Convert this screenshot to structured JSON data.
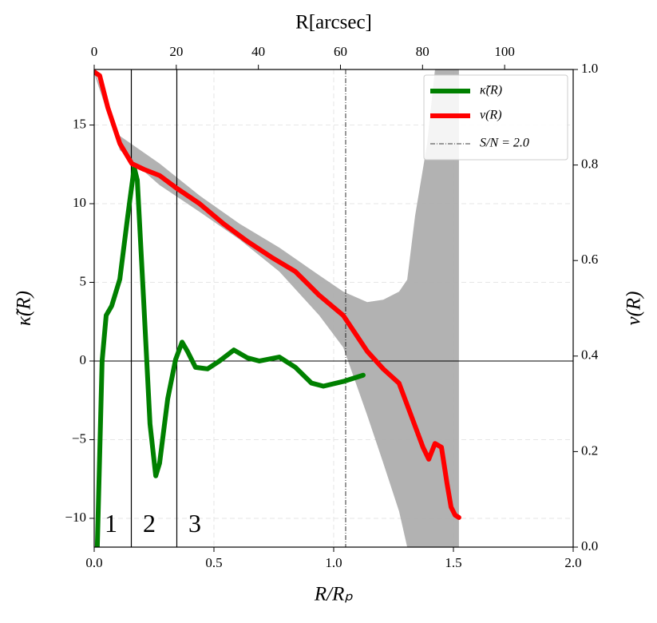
{
  "chart_data": {
    "type": "line",
    "xlabel": "R/Rₚ",
    "x2label": "R[arcsec]",
    "ylabel": "κ̃(R)",
    "y2label": "ν(R)",
    "xlim": [
      0,
      2.0
    ],
    "xticks": [
      {
        "value": 0,
        "label": "0.0"
      },
      0.5,
      {
        "value": 1,
        "label": "1.0"
      },
      1.5,
      {
        "value": 2,
        "label": "2.0"
      }
    ],
    "x2lim": [
      0,
      116.7
    ],
    "x2ticks": [
      0,
      20,
      40,
      60,
      80,
      100
    ],
    "ylim": [
      -11.83,
      18.53
    ],
    "yticks": [
      {
        "value": -10,
        "label": "−10"
      },
      {
        "value": -5,
        "label": "−5"
      },
      0,
      5,
      10,
      15
    ],
    "y2lim": [
      0,
      1.0
    ],
    "y2ticks": [
      {
        "value": 0,
        "label": "0.0"
      },
      0.2,
      0.4,
      0.6,
      0.8,
      {
        "value": 1,
        "label": "1.0"
      }
    ],
    "grid": true,
    "legend": "upper right",
    "hline": 0,
    "vlines": [
      0.155,
      0.345
    ],
    "threshold": {
      "x": 1.05,
      "label": "S/N = 2.0"
    },
    "annotations": [
      {
        "text": "1",
        "x": 0.07,
        "y": -10.5
      },
      {
        "text": "2",
        "x": 0.23,
        "y": -10.5
      },
      {
        "text": "3",
        "x": 0.42,
        "y": -10.5
      }
    ],
    "error_band": {
      "color": "#aaaaaa",
      "axis": "y2",
      "x": [
        0,
        0.107,
        0.273,
        0.44,
        0.607,
        0.773,
        0.94,
        1.04,
        1.14,
        1.207,
        1.273,
        1.307,
        1.34,
        1.39,
        1.423,
        1.523
      ],
      "upper": [
        0.998,
        0.861,
        0.803,
        0.736,
        0.677,
        0.627,
        0.569,
        0.535,
        0.513,
        0.518,
        0.535,
        0.56,
        0.694,
        0.844,
        1.0,
        1.0
      ],
      "lower": [
        0.992,
        0.831,
        0.758,
        0.702,
        0.644,
        0.577,
        0.485,
        0.418,
        0.276,
        0.176,
        0.075,
        0,
        0,
        0,
        0,
        0
      ]
    },
    "series": [
      {
        "name": "κ̃(R)",
        "color": "#008000",
        "x": [
          0.013,
          0.033,
          0.05,
          0.073,
          0.107,
          0.14,
          0.167,
          0.18,
          0.207,
          0.233,
          0.257,
          0.273,
          0.307,
          0.34,
          0.367,
          0.39,
          0.423,
          0.473,
          0.523,
          0.583,
          0.64,
          0.69,
          0.773,
          0.84,
          0.907,
          0.957,
          1.04,
          1.123
        ],
        "values": [
          -11.8,
          0,
          2.9,
          3.5,
          5.2,
          9.2,
          12.3,
          11.5,
          3.7,
          -4.0,
          -7.3,
          -6.5,
          -2.4,
          0.1,
          1.2,
          0.6,
          -0.4,
          -0.5,
          0,
          0.7,
          0.2,
          0,
          0.25,
          -0.4,
          -1.4,
          -1.6,
          -1.3,
          -0.9
        ]
      },
      {
        "name": "ν(R)",
        "color": "#ff0000",
        "axis": "y2",
        "x": [
          0,
          0.023,
          0.057,
          0.107,
          0.157,
          0.207,
          0.273,
          0.34,
          0.44,
          0.54,
          0.64,
          0.74,
          0.84,
          0.94,
          1.04,
          1.14,
          1.207,
          1.273,
          1.323,
          1.373,
          1.397,
          1.423,
          1.45,
          1.473,
          1.49,
          1.507,
          1.523
        ],
        "values": [
          0.995,
          0.987,
          0.92,
          0.845,
          0.803,
          0.791,
          0.778,
          0.753,
          0.719,
          0.677,
          0.64,
          0.607,
          0.577,
          0.527,
          0.485,
          0.41,
          0.373,
          0.343,
          0.276,
          0.209,
          0.184,
          0.217,
          0.209,
          0.134,
          0.084,
          0.067,
          0.062
        ]
      }
    ]
  }
}
